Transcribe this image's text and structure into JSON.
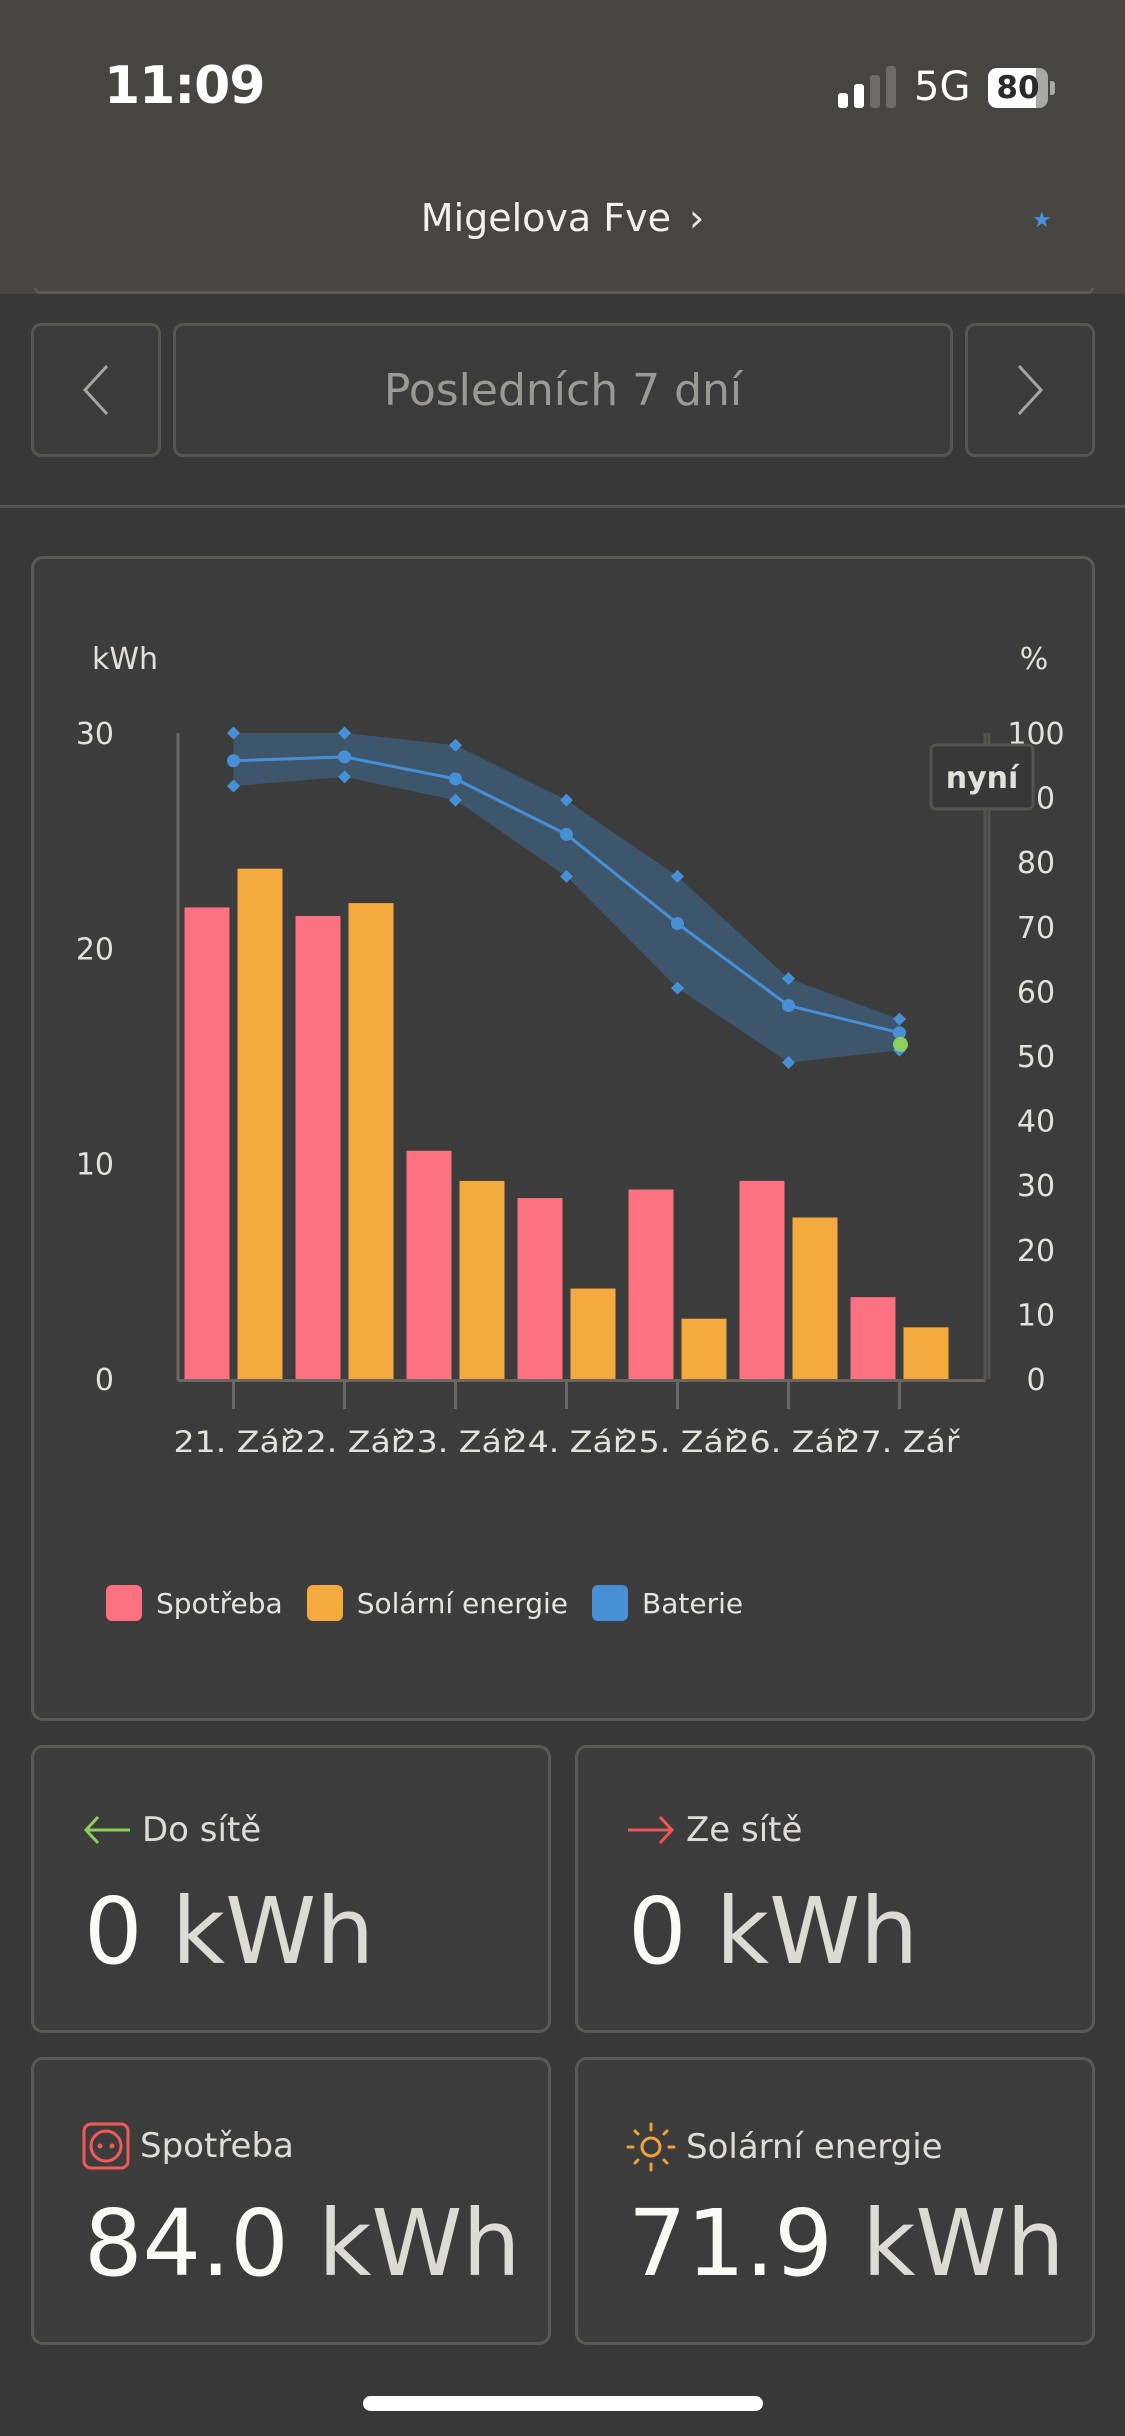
{
  "status_bar": {
    "time": "11:09",
    "network": "5G",
    "battery_percent": "80",
    "battery_level": 0.8,
    "signal_bars_active": 2,
    "signal_bars_total": 4
  },
  "header": {
    "site_name": "Migelova Fve",
    "chevron": "›",
    "star_icon": "★"
  },
  "period_nav": {
    "prev_icon": "chevron-left-icon",
    "label": "Posledních 7 dní",
    "next_icon": "chevron-right-icon"
  },
  "chart_data": {
    "type": "bar",
    "title": "",
    "xlabel": "",
    "ylabel": "kWh",
    "y2label": "%",
    "ylim": [
      0,
      30
    ],
    "y2lim": [
      0,
      100
    ],
    "yticks": [
      "0",
      "10",
      "20",
      "30"
    ],
    "y2ticks": [
      "0",
      "10",
      "20",
      "30",
      "40",
      "50",
      "60",
      "70",
      "80",
      "90",
      "100"
    ],
    "categories": [
      "21. Zář",
      "22. Zář",
      "23. Zář",
      "24. Zář",
      "25. Zář",
      "26. Zář",
      "27. Zář"
    ],
    "series": [
      {
        "name": "Spotřeba",
        "type": "bar",
        "color": "#fd7281",
        "values": [
          21.9,
          21.5,
          10.6,
          8.4,
          8.8,
          9.2,
          3.8
        ]
      },
      {
        "name": "Solární energie",
        "type": "bar",
        "color": "#f5aa3f",
        "values": [
          23.7,
          22.1,
          9.2,
          4.2,
          2.8,
          7.5,
          2.4
        ]
      },
      {
        "name": "Baterie",
        "type": "line",
        "axis": "y2",
        "color": "#4790d6",
        "values": [
          95.7,
          96.3,
          92.9,
          84.3,
          70.5,
          57.8,
          53.6
        ],
        "max": [
          100,
          100,
          98.1,
          89.6,
          77.8,
          62.0,
          55.7
        ],
        "min": [
          91.8,
          93.2,
          89.6,
          77.8,
          60.5,
          49.0,
          50.9
        ]
      }
    ],
    "current_battery": 51.8,
    "current_color": "#8ccf5e",
    "now_label": "nyní",
    "grid": false,
    "legend": "bottom-left"
  },
  "legend": [
    {
      "label": "Spotřeba",
      "color": "#fd7281"
    },
    {
      "label": "Solární energie",
      "color": "#f5aa3f"
    },
    {
      "label": "Baterie",
      "color": "#4790d6"
    }
  ],
  "stats": {
    "to_grid": {
      "label": "Do sítě",
      "number": "0",
      "unit": "kWh",
      "icon": "arrow-left-icon",
      "color": "#8ccf5e"
    },
    "from_grid": {
      "label": "Ze sítě",
      "number": "0",
      "unit": "kWh",
      "icon": "arrow-right-icon",
      "color": "#f05454"
    },
    "consumption": {
      "label": "Spotřeba",
      "number": "84.0",
      "unit": "kWh",
      "icon": "socket-icon",
      "color": "#f05a5a"
    },
    "solar": {
      "label": "Solární energie",
      "number": "71.9",
      "unit": "kWh",
      "icon": "sun-icon",
      "color": "#f5a13a"
    }
  }
}
